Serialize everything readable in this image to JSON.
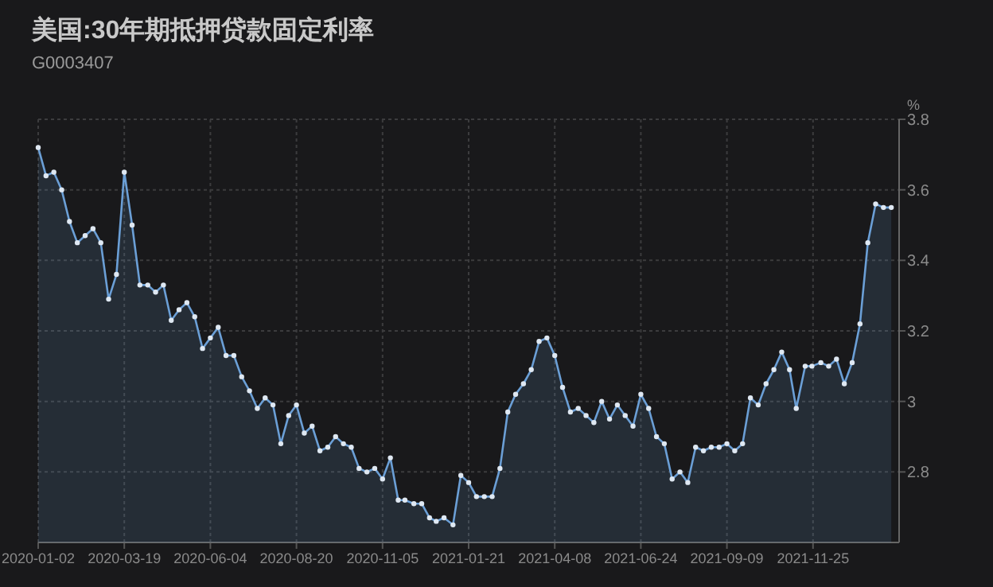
{
  "chart_data": {
    "type": "area",
    "title": "美国:30年期抵押贷款固定利率",
    "subtitle": "G0003407",
    "ylabel": "%",
    "x": [
      "2020-01-02",
      "2020-01-09",
      "2020-01-16",
      "2020-01-23",
      "2020-01-30",
      "2020-02-06",
      "2020-02-13",
      "2020-02-20",
      "2020-02-27",
      "2020-03-05",
      "2020-03-12",
      "2020-03-19",
      "2020-03-26",
      "2020-04-02",
      "2020-04-09",
      "2020-04-16",
      "2020-04-23",
      "2020-04-30",
      "2020-05-07",
      "2020-05-14",
      "2020-05-21",
      "2020-05-28",
      "2020-06-04",
      "2020-06-11",
      "2020-06-18",
      "2020-06-25",
      "2020-07-02",
      "2020-07-09",
      "2020-07-16",
      "2020-07-23",
      "2020-07-30",
      "2020-08-06",
      "2020-08-13",
      "2020-08-20",
      "2020-08-27",
      "2020-09-03",
      "2020-09-10",
      "2020-09-17",
      "2020-09-24",
      "2020-10-01",
      "2020-10-08",
      "2020-10-15",
      "2020-10-22",
      "2020-10-29",
      "2020-11-05",
      "2020-11-12",
      "2020-11-19",
      "2020-11-25",
      "2020-12-03",
      "2020-12-10",
      "2020-12-17",
      "2020-12-23",
      "2020-12-30",
      "2021-01-07",
      "2021-01-14",
      "2021-01-21",
      "2021-01-28",
      "2021-02-04",
      "2021-02-11",
      "2021-02-18",
      "2021-02-25",
      "2021-03-04",
      "2021-03-11",
      "2021-03-18",
      "2021-03-25",
      "2021-04-01",
      "2021-04-08",
      "2021-04-15",
      "2021-04-22",
      "2021-04-29",
      "2021-05-06",
      "2021-05-13",
      "2021-05-20",
      "2021-05-27",
      "2021-06-03",
      "2021-06-10",
      "2021-06-17",
      "2021-06-24",
      "2021-07-01",
      "2021-07-08",
      "2021-07-15",
      "2021-07-22",
      "2021-07-29",
      "2021-08-05",
      "2021-08-12",
      "2021-08-19",
      "2021-08-26",
      "2021-09-02",
      "2021-09-09",
      "2021-09-16",
      "2021-09-23",
      "2021-09-30",
      "2021-10-07",
      "2021-10-14",
      "2021-10-21",
      "2021-10-28",
      "2021-11-04",
      "2021-11-10",
      "2021-11-18",
      "2021-11-24",
      "2021-12-02",
      "2021-12-09",
      "2021-12-16",
      "2021-12-23",
      "2021-12-30",
      "2022-01-06",
      "2022-01-13",
      "2022-01-20",
      "2022-01-27",
      "2022-02-03"
    ],
    "series": [
      {
        "color": "#6b9fd6",
        "values": [
          3.72,
          3.64,
          3.65,
          3.6,
          3.51,
          3.45,
          3.47,
          3.49,
          3.45,
          3.29,
          3.36,
          3.65,
          3.5,
          3.33,
          3.33,
          3.31,
          3.33,
          3.23,
          3.26,
          3.28,
          3.24,
          3.15,
          3.18,
          3.21,
          3.13,
          3.13,
          3.07,
          3.03,
          2.98,
          3.01,
          2.99,
          2.88,
          2.96,
          2.99,
          2.91,
          2.93,
          2.86,
          2.87,
          2.9,
          2.88,
          2.87,
          2.81,
          2.8,
          2.81,
          2.78,
          2.84,
          2.72,
          2.72,
          2.71,
          2.71,
          2.67,
          2.66,
          2.67,
          2.65,
          2.79,
          2.77,
          2.73,
          2.73,
          2.73,
          2.81,
          2.97,
          3.02,
          3.05,
          3.09,
          3.17,
          3.18,
          3.13,
          3.04,
          2.97,
          2.98,
          2.96,
          2.94,
          3.0,
          2.95,
          2.99,
          2.96,
          2.93,
          3.02,
          2.98,
          2.9,
          2.88,
          2.78,
          2.8,
          2.77,
          2.87,
          2.86,
          2.87,
          2.87,
          2.88,
          2.86,
          2.88,
          3.01,
          2.99,
          3.05,
          3.09,
          3.14,
          3.09,
          2.98,
          3.1,
          3.1,
          3.11,
          3.1,
          3.12,
          3.05,
          3.11,
          3.22,
          3.45,
          3.56,
          3.55,
          3.55
        ]
      }
    ],
    "xlim": [
      "2020-01-02",
      "2022-02-10"
    ],
    "xticks": [
      "2020-01-02",
      "2020-03-19",
      "2020-06-04",
      "2020-08-20",
      "2020-11-05",
      "2021-01-21",
      "2021-04-08",
      "2021-06-24",
      "2021-09-09",
      "2021-11-25"
    ],
    "ylim": [
      2.6,
      3.8
    ],
    "yticks": [
      2.8,
      3,
      3.2,
      3.4,
      3.6,
      3.8
    ],
    "grid": true,
    "marker": "circle"
  }
}
